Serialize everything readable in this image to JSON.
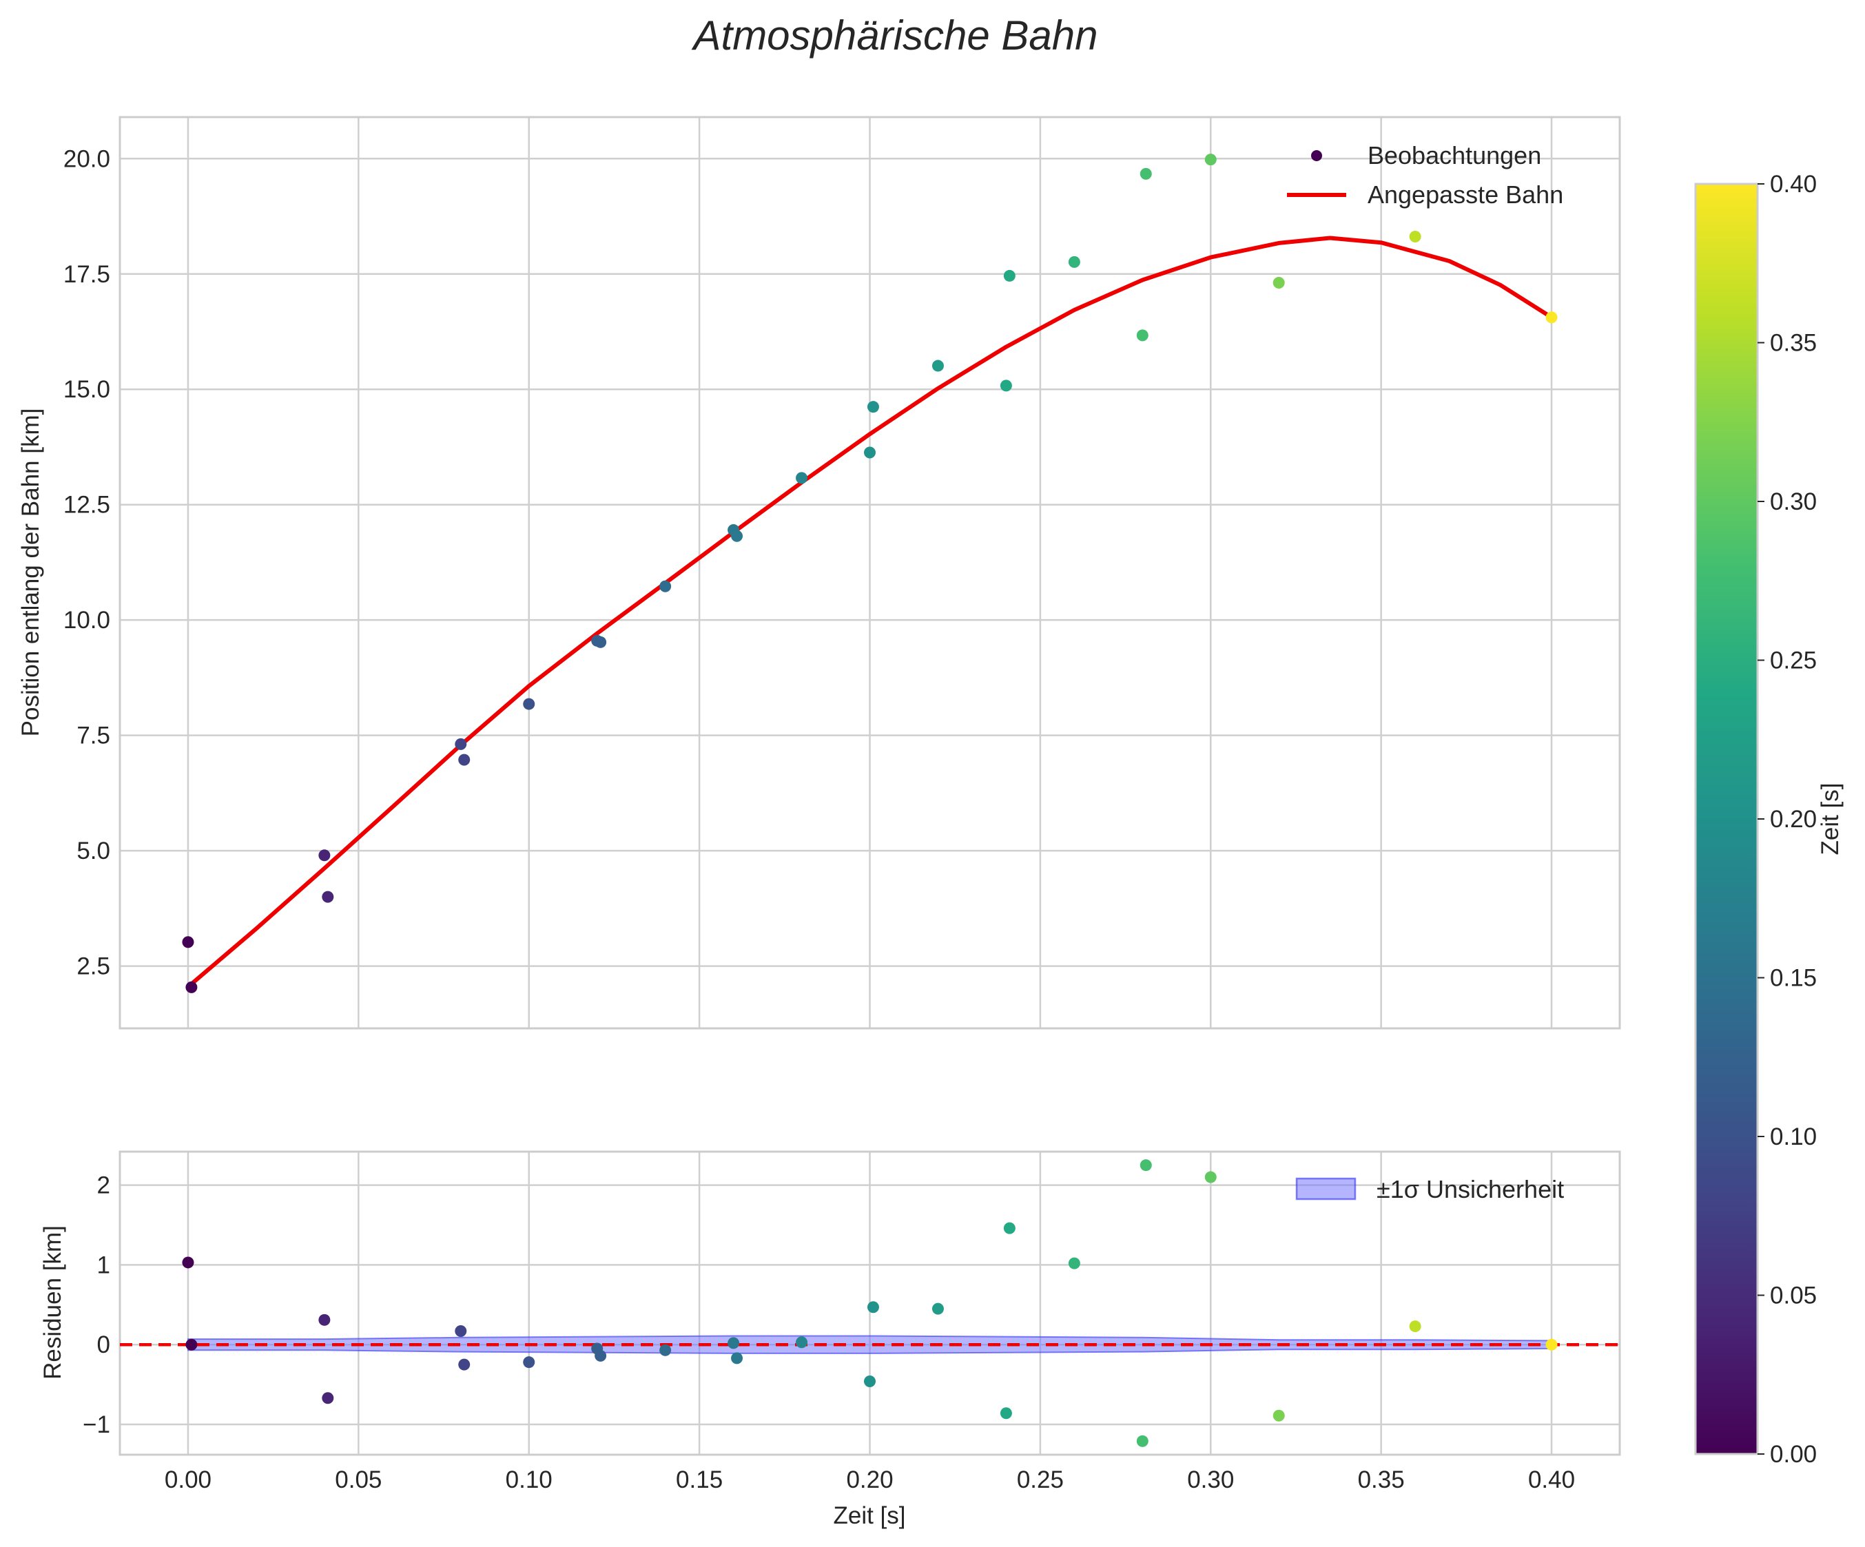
{
  "colors": {
    "fit": "#ee0000",
    "band_fill": "#7777ff",
    "band_edge": "#3333ee",
    "grid": "#cfcfcf",
    "frame": "#cccccc",
    "text": "#262626"
  },
  "chart_data": [
    {
      "id": "main",
      "type": "scatter",
      "title": "Atmosphärische Bahn",
      "xlabel": "Zeit [s]",
      "ylabel": "Position entlang der Bahn [km]",
      "xlim": [
        -0.02,
        0.42
      ],
      "ylim": [
        1.15,
        20.9
      ],
      "grid": true,
      "x_ticks": [
        0.0,
        0.05,
        0.1,
        0.15,
        0.2,
        0.25,
        0.3,
        0.35,
        0.4
      ],
      "x_tick_labels": [
        "0.00",
        "0.05",
        "0.10",
        "0.15",
        "0.20",
        "0.25",
        "0.30",
        "0.35",
        "0.40"
      ],
      "y_ticks": [
        2.5,
        5.0,
        7.5,
        10.0,
        12.5,
        15.0,
        17.5,
        20.0
      ],
      "y_tick_labels": [
        "2.5",
        "5.0",
        "7.5",
        "10.0",
        "12.5",
        "15.0",
        "17.5",
        "20.0"
      ],
      "legend": {
        "position": "top-right",
        "entries": [
          {
            "label": "Beobachtungen",
            "kind": "marker"
          },
          {
            "label": "Angepasste Bahn",
            "kind": "line"
          }
        ]
      },
      "series": [
        {
          "name": "Beobachtungen",
          "kind": "scatter",
          "color_by": "x",
          "points": [
            [
              0.0,
              3.02
            ],
            [
              0.001,
              2.04
            ],
            [
              0.04,
              4.9
            ],
            [
              0.041,
              4.0
            ],
            [
              0.08,
              7.31
            ],
            [
              0.081,
              6.97
            ],
            [
              0.1,
              8.18
            ],
            [
              0.12,
              9.55
            ],
            [
              0.121,
              9.52
            ],
            [
              0.14,
              10.73
            ],
            [
              0.16,
              11.95
            ],
            [
              0.161,
              11.82
            ],
            [
              0.18,
              13.08
            ],
            [
              0.2,
              13.63
            ],
            [
              0.201,
              14.62
            ],
            [
              0.22,
              15.51
            ],
            [
              0.24,
              15.08
            ],
            [
              0.241,
              17.46
            ],
            [
              0.26,
              17.76
            ],
            [
              0.28,
              16.17
            ],
            [
              0.281,
              19.67
            ],
            [
              0.3,
              19.98
            ],
            [
              0.32,
              17.31
            ],
            [
              0.36,
              18.31
            ],
            [
              0.4,
              16.56
            ]
          ]
        },
        {
          "name": "Angepasste Bahn",
          "kind": "line",
          "points": [
            [
              0.0,
              2.05
            ],
            [
              0.02,
              3.31
            ],
            [
              0.04,
              4.62
            ],
            [
              0.06,
              5.95
            ],
            [
              0.08,
              7.29
            ],
            [
              0.1,
              8.57
            ],
            [
              0.12,
              9.71
            ],
            [
              0.14,
              10.8
            ],
            [
              0.16,
              11.9
            ],
            [
              0.18,
              12.98
            ],
            [
              0.2,
              14.03
            ],
            [
              0.22,
              15.02
            ],
            [
              0.24,
              15.92
            ],
            [
              0.26,
              16.72
            ],
            [
              0.28,
              17.37
            ],
            [
              0.3,
              17.86
            ],
            [
              0.32,
              18.17
            ],
            [
              0.335,
              18.28
            ],
            [
              0.35,
              18.18
            ],
            [
              0.37,
              17.78
            ],
            [
              0.385,
              17.26
            ],
            [
              0.4,
              16.56
            ]
          ]
        }
      ]
    },
    {
      "id": "residuals",
      "type": "scatter",
      "xlabel": "Zeit [s]",
      "ylabel": "Residuen [km]",
      "xlim": [
        -0.02,
        0.42
      ],
      "ylim": [
        -1.38,
        2.42
      ],
      "grid": true,
      "x_ticks": [
        0.0,
        0.05,
        0.1,
        0.15,
        0.2,
        0.25,
        0.3,
        0.35,
        0.4
      ],
      "x_tick_labels": [
        "0.00",
        "0.05",
        "0.10",
        "0.15",
        "0.20",
        "0.25",
        "0.30",
        "0.35",
        "0.40"
      ],
      "y_ticks": [
        -1,
        0,
        1,
        2
      ],
      "y_tick_labels": [
        "−1",
        "0",
        "1",
        "2"
      ],
      "reference_line": 0,
      "legend": {
        "position": "top-right",
        "entries": [
          {
            "label": "±1σ Unsicherheit",
            "kind": "patch"
          }
        ]
      },
      "series": [
        {
          "name": "Residuen",
          "kind": "scatter",
          "color_by": "x",
          "points": [
            [
              0.0,
              1.03
            ],
            [
              0.001,
              0.0
            ],
            [
              0.04,
              0.31
            ],
            [
              0.041,
              -0.67
            ],
            [
              0.08,
              0.17
            ],
            [
              0.081,
              -0.25
            ],
            [
              0.1,
              -0.22
            ],
            [
              0.12,
              -0.05
            ],
            [
              0.121,
              -0.14
            ],
            [
              0.14,
              -0.07
            ],
            [
              0.16,
              0.02
            ],
            [
              0.161,
              -0.17
            ],
            [
              0.18,
              0.03
            ],
            [
              0.2,
              -0.46
            ],
            [
              0.201,
              0.47
            ],
            [
              0.22,
              0.45
            ],
            [
              0.24,
              -0.86
            ],
            [
              0.241,
              1.46
            ],
            [
              0.26,
              1.02
            ],
            [
              0.28,
              -1.21
            ],
            [
              0.281,
              2.25
            ],
            [
              0.3,
              2.1
            ],
            [
              0.32,
              -0.89
            ],
            [
              0.36,
              0.23
            ],
            [
              0.4,
              0.0
            ]
          ]
        },
        {
          "name": "±1σ Unsicherheit",
          "kind": "band",
          "x": [
            0.0,
            0.04,
            0.08,
            0.12,
            0.16,
            0.2,
            0.24,
            0.28,
            0.32,
            0.36,
            0.4
          ],
          "sigma": [
            0.07,
            0.07,
            0.09,
            0.1,
            0.11,
            0.11,
            0.1,
            0.09,
            0.06,
            0.06,
            0.05
          ]
        }
      ]
    }
  ],
  "colorbar": {
    "label": "Zeit [s]",
    "range": [
      0.0,
      0.4
    ],
    "cmap": "viridis",
    "ticks": [
      0.0,
      0.05,
      0.1,
      0.15,
      0.2,
      0.25,
      0.3,
      0.35,
      0.4
    ],
    "tick_labels": [
      "0.00",
      "0.05",
      "0.10",
      "0.15",
      "0.20",
      "0.25",
      "0.30",
      "0.35",
      "0.40"
    ]
  }
}
